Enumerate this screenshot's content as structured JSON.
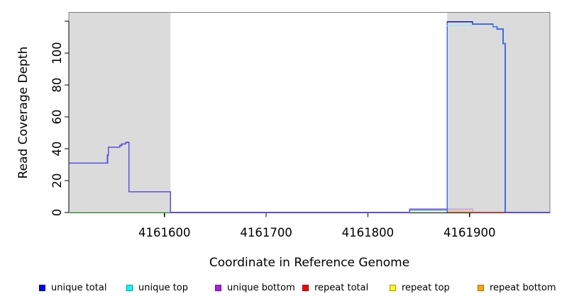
{
  "chart_data": {
    "type": "line",
    "title": "",
    "xlabel": "Coordinate in Reference Genome",
    "ylabel": "Read Coverage Depth",
    "xlim": [
      4161506,
      4161979
    ],
    "ylim": [
      0,
      126
    ],
    "grid": false,
    "x_ticks": [
      {
        "value": 4161600,
        "label": "4161600"
      },
      {
        "value": 4161700,
        "label": "4161700"
      },
      {
        "value": 4161800,
        "label": "4161800"
      },
      {
        "value": 4161900,
        "label": "4161900"
      }
    ],
    "y_ticks": [
      {
        "value": 0,
        "label": "0"
      },
      {
        "value": 20,
        "label": "20"
      },
      {
        "value": 40,
        "label": "40"
      },
      {
        "value": 60,
        "label": "60"
      },
      {
        "value": 80,
        "label": "80"
      },
      {
        "value": 100,
        "label": "100"
      },
      {
        "value": 120,
        "label": ""
      }
    ],
    "shaded_regions": [
      {
        "name": "repeat-region-left",
        "x1": 4161506,
        "x2": 4161606,
        "color": "#DBDBDB"
      },
      {
        "name": "repeat-region-right",
        "x1": 4161878,
        "x2": 4161979,
        "color": "#DBDBDB"
      }
    ],
    "series": [
      {
        "name": "green-baseline-left",
        "color": "#8FD88F",
        "width": 1.4,
        "points": [
          [
            4161506,
            0.2
          ],
          [
            4161606,
            0.2
          ]
        ]
      },
      {
        "name": "green-baseline-mid",
        "color": "#8FD88F",
        "width": 1.4,
        "points": [
          [
            4161841,
            1
          ],
          [
            4161878,
            1
          ]
        ]
      },
      {
        "name": "unique-coverage-main",
        "color": "#5B4FE0",
        "width": 1.6,
        "points": [
          [
            4161506,
            31
          ],
          [
            4161544,
            31
          ],
          [
            4161544,
            36
          ],
          [
            4161545,
            36
          ],
          [
            4161545,
            41
          ],
          [
            4161556,
            41
          ],
          [
            4161556,
            42
          ],
          [
            4161558,
            42
          ],
          [
            4161558,
            43
          ],
          [
            4161562,
            43
          ],
          [
            4161562,
            44
          ],
          [
            4161565,
            44
          ],
          [
            4161565,
            13
          ],
          [
            4161606,
            13
          ],
          [
            4161606,
            0
          ],
          [
            4161841,
            0
          ],
          [
            4161841,
            2
          ],
          [
            4161878,
            2
          ]
        ]
      },
      {
        "name": "unique-bottom-over-repeat",
        "color": "#C7A6E8",
        "width": 1.6,
        "points": [
          [
            4161878,
            2
          ],
          [
            4161903,
            2
          ],
          [
            4161903,
            0
          ]
        ]
      },
      {
        "name": "orange-repeat-bottom",
        "color": "#FFA428",
        "width": 1.6,
        "points": [
          [
            4161878,
            0.5
          ],
          [
            4161903,
            0.5
          ]
        ]
      },
      {
        "name": "red-repeat-total",
        "color": "#E25560",
        "width": 1.6,
        "points": [
          [
            4161903,
            0.1
          ],
          [
            4161936,
            0.1
          ]
        ]
      },
      {
        "name": "royal-unique-top-trace",
        "color": "#3E6EE8",
        "width": 1.8,
        "points": [
          [
            4161878,
            0
          ],
          [
            4161878,
            119.7
          ],
          [
            4161903,
            119.7
          ],
          [
            4161903,
            118.2
          ],
          [
            4161923,
            118.2
          ],
          [
            4161923,
            116.6
          ],
          [
            4161927,
            116.6
          ],
          [
            4161927,
            115.1
          ],
          [
            4161933,
            115.1
          ],
          [
            4161933,
            106
          ],
          [
            4161935,
            106
          ],
          [
            4161935,
            0
          ]
        ]
      },
      {
        "name": "cyan-unique-top",
        "color": "#9FE8F0",
        "width": 1.6,
        "points": [
          [
            4161878,
            117.3
          ],
          [
            4161903,
            117.3
          ]
        ]
      },
      {
        "name": "navy-unique-total",
        "color": "#0D0DCF",
        "width": 1.8,
        "points": [
          [
            4161878,
            119.7
          ],
          [
            4161903,
            119.7
          ]
        ]
      },
      {
        "name": "unique-coverage-tail",
        "color": "#5B4FE0",
        "width": 1.6,
        "points": [
          [
            4161936,
            0
          ],
          [
            4161979,
            0
          ]
        ]
      }
    ],
    "legend": {
      "position": "bottom",
      "items": [
        {
          "label": "unique total",
          "fill": "#0000FF",
          "border": "#000099"
        },
        {
          "label": "unique top",
          "fill": "#00FFFF",
          "border": "#009999"
        },
        {
          "label": "unique bottom",
          "fill": "#A020F0",
          "border": "#6A0DAD"
        },
        {
          "label": "repeat total",
          "fill": "#FF0000",
          "border": "#990000"
        },
        {
          "label": "repeat top",
          "fill": "#FFFF00",
          "border": "#999900"
        },
        {
          "label": "repeat bottom",
          "fill": "#FFA500",
          "border": "#B36B00"
        }
      ]
    },
    "colors": {
      "shaded_region": "#DBDBDB",
      "box_border": "#7F7F7F",
      "axis": "#000000"
    }
  }
}
